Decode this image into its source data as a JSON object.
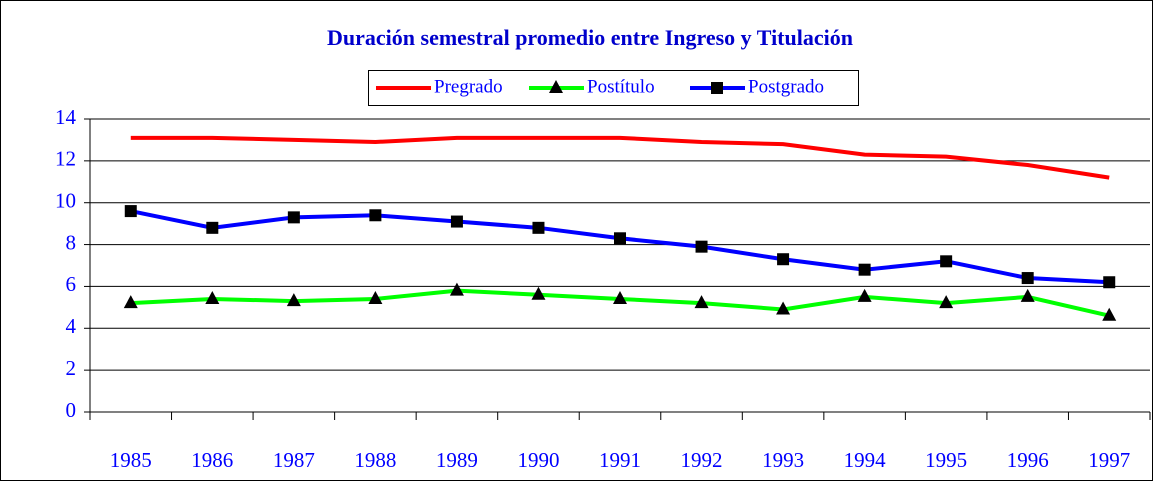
{
  "chart_data": {
    "type": "line",
    "title": "Duración semestral promedio entre Ingreso y Titulación",
    "categories": [
      "1985",
      "1986",
      "1987",
      "1988",
      "1989",
      "1990",
      "1991",
      "1992",
      "1993",
      "1994",
      "1995",
      "1996",
      "1997"
    ],
    "series": [
      {
        "name": "Pregrado",
        "color": "#ff0000",
        "marker": "none",
        "values": [
          13.1,
          13.1,
          13.0,
          12.9,
          13.1,
          13.1,
          13.1,
          12.9,
          12.8,
          12.3,
          12.2,
          11.8,
          11.2
        ]
      },
      {
        "name": "Postítulo",
        "color": "#00ff00",
        "marker": "triangle",
        "values": [
          5.2,
          5.4,
          5.3,
          5.4,
          5.8,
          5.6,
          5.4,
          5.2,
          4.9,
          5.5,
          5.2,
          5.5,
          4.6
        ]
      },
      {
        "name": "Postgrado",
        "color": "#0000ff",
        "marker": "square",
        "values": [
          9.6,
          8.8,
          9.3,
          9.4,
          9.1,
          8.8,
          8.3,
          7.9,
          7.3,
          6.8,
          7.2,
          6.4,
          6.2
        ]
      }
    ],
    "ylim": [
      0,
      14
    ],
    "yticks": [
      0,
      2,
      4,
      6,
      8,
      10,
      12,
      14
    ],
    "grid": true,
    "legend": "top"
  }
}
